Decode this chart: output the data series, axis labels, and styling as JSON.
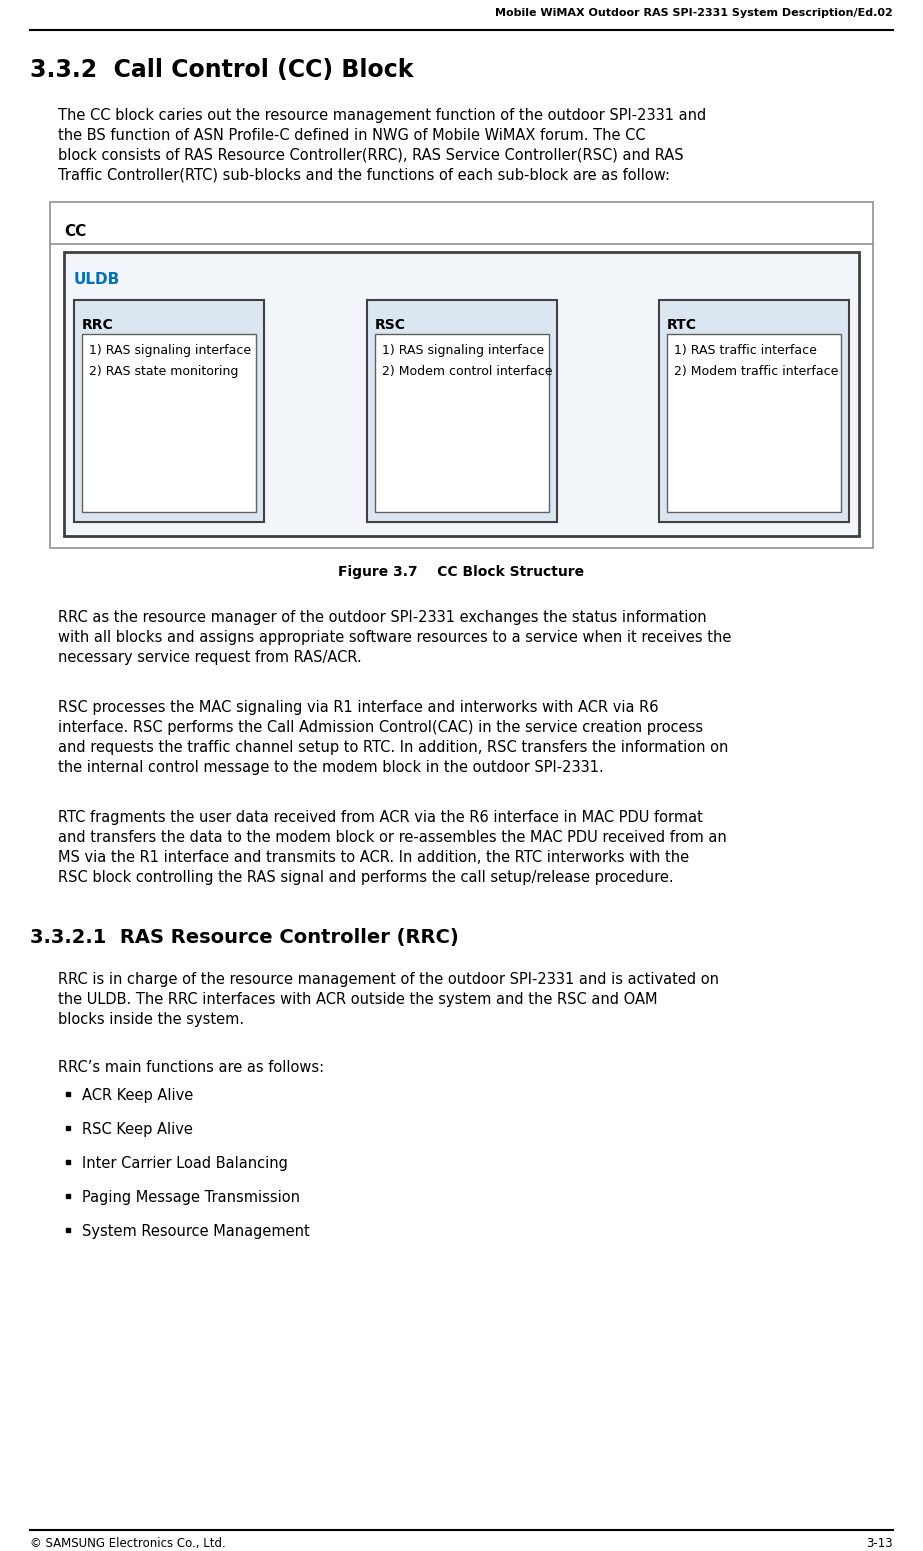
{
  "header_text": "Mobile WiMAX Outdoor RAS SPI-2331 System Description/Ed.02",
  "footer_left": "© SAMSUNG Electronics Co., Ltd.",
  "footer_right": "3-13",
  "section_title": "3.3.2  Call Control (CC) Block",
  "para1_lines": [
    "The CC block caries out the resource management function of the outdoor SPI-2331 and",
    "the BS function of ASN Profile-C defined in NWG of Mobile WiMAX forum. The CC",
    "block consists of RAS Resource Controller(RRC), RAS Service Controller(RSC) and RAS",
    "Traffic Controller(RTC) sub-blocks and the functions of each sub-block are as follow:"
  ],
  "figure_caption": "Figure 3.7    CC Block Structure",
  "cc_label": "CC",
  "uldb_label": "ULDB",
  "rrc_label": "RRC",
  "rsc_label": "RSC",
  "rtc_label": "RTC",
  "rrc_items": "1) RAS signaling interface\n2) RAS state monitoring",
  "rsc_items": "1) RAS signaling interface\n2) Modem control interface",
  "rtc_items": "1) RAS traffic interface\n2) Modem traffic interface",
  "para2_lines": [
    "RRC as the resource manager of the outdoor SPI-2331 exchanges the status information",
    "with all blocks and assigns appropriate software resources to a service when it receives the",
    "necessary service request from RAS/ACR."
  ],
  "para3_lines": [
    "RSC processes the MAC signaling via R1 interface and interworks with ACR via R6",
    "interface. RSC performs the Call Admission Control(CAC) in the service creation process",
    "and requests the traffic channel setup to RTC. In addition, RSC transfers the information on",
    "the internal control message to the modem block in the outdoor SPI-2331."
  ],
  "para4_lines": [
    "RTC fragments the user data received from ACR via the R6 interface in MAC PDU format",
    "and transfers the data to the modem block or re-assembles the MAC PDU received from an",
    "MS via the R1 interface and transmits to ACR. In addition, the RTC interworks with the",
    "RSC block controlling the RAS signal and performs the call setup/release procedure."
  ],
  "subsection_title": "3.3.2.1  RAS Resource Controller (RRC)",
  "para5_lines": [
    "RRC is in charge of the resource management of the outdoor SPI-2331 and is activated on",
    "the ULDB. The RRC interfaces with ACR outside the system and the RSC and OAM",
    "blocks inside the system."
  ],
  "para6": "RRC’s main functions are as follows:",
  "bullet_items": [
    "ACR Keep Alive",
    "RSC Keep Alive",
    "Inter Carrier Load Balancing",
    "Paging Message Transmission",
    "System Resource Management"
  ],
  "uldb_color": "#0070C0",
  "box_bg_light": "#DCE6F1",
  "cc_border": "#909090",
  "uldb_border": "#404040",
  "block_border": "#404040"
}
